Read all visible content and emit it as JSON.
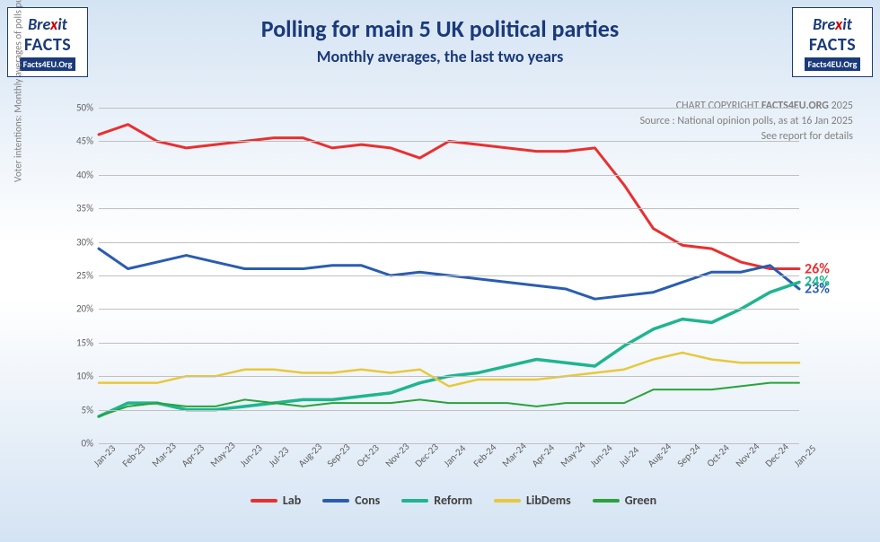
{
  "logo": {
    "line1_a": "Bre",
    "line1_x": "x",
    "line1_b": "it",
    "line2": "FACTS",
    "url": "Facts4EU.Org"
  },
  "title": {
    "main": "Polling for main 5 UK political parties",
    "sub": "Monthly averages, the last two years"
  },
  "credit": {
    "line1_a": "CHART COPYRIGHT ",
    "line1_b": "FACTS4EU.ORG",
    "line1_c": " 2025",
    "line2": "Source : National opinion polls, as at 16 Jan 2025",
    "line3": "See report for details"
  },
  "yaxis": {
    "title": "Voter intentions: Monthly averages of polls published that month",
    "min": 0,
    "max": 50,
    "step": 5,
    "tick_suffix": "%",
    "grid_color": "#c0c0c0"
  },
  "xaxis": {
    "labels": [
      "Jan-23",
      "Feb-23",
      "Mar-23",
      "Apr-23",
      "May-23",
      "Jun-23",
      "Jul-23",
      "Aug-23",
      "Sep-23",
      "Oct-23",
      "Nov-23",
      "Dec-23",
      "Jan-24",
      "Feb-24",
      "Mar-24",
      "Apr-24",
      "May-24",
      "Jun-24",
      "Jul-24",
      "Aug-24",
      "Sep-24",
      "Oct-24",
      "Nov-24",
      "Dec-24",
      "Jan-25"
    ]
  },
  "series": [
    {
      "name": "Lab",
      "color": "#e83030",
      "width": 3,
      "end_label": "26%",
      "values": [
        46,
        47.5,
        45,
        44,
        44.5,
        45,
        45.5,
        45.5,
        44,
        44.5,
        44,
        42.5,
        45,
        44.5,
        44,
        43.5,
        43.5,
        44,
        38.5,
        32,
        29.5,
        29,
        27,
        26,
        26
      ]
    },
    {
      "name": "Cons",
      "color": "#2a5db0",
      "width": 3,
      "end_label": "23%",
      "values": [
        29,
        26,
        27,
        28,
        27,
        26,
        26,
        26,
        26.5,
        26.5,
        25,
        25.5,
        25,
        24.5,
        24,
        23.5,
        23,
        21.5,
        22,
        22.5,
        24,
        25.5,
        25.5,
        26.5,
        23
      ]
    },
    {
      "name": "Reform",
      "color": "#1fb58f",
      "width": 3.5,
      "end_label": "24%",
      "values": [
        4,
        6,
        6,
        5,
        5,
        5.5,
        6,
        6.5,
        6.5,
        7,
        7.5,
        9,
        10,
        10.5,
        11.5,
        12.5,
        12,
        11.5,
        14.5,
        17,
        18.5,
        18,
        20,
        22.5,
        24
      ]
    },
    {
      "name": "LibDems",
      "color": "#e8c83c",
      "width": 2.5,
      "end_label": null,
      "values": [
        9,
        9,
        9,
        10,
        10,
        11,
        11,
        10.5,
        10.5,
        11,
        10.5,
        11,
        8.5,
        9.5,
        9.5,
        9.5,
        10,
        10.5,
        11,
        12.5,
        13.5,
        12.5,
        12,
        12,
        12
      ]
    },
    {
      "name": "Green",
      "color": "#2aa33a",
      "width": 2,
      "end_label": null,
      "values": [
        4,
        5.5,
        6,
        5.5,
        5.5,
        6.5,
        6,
        5.5,
        6,
        6,
        6,
        6.5,
        6,
        6,
        6,
        5.5,
        6,
        6,
        6,
        8,
        8,
        8,
        8.5,
        9,
        9
      ]
    }
  ],
  "legend": [
    "Lab",
    "Cons",
    "Reform",
    "LibDems",
    "Green"
  ]
}
